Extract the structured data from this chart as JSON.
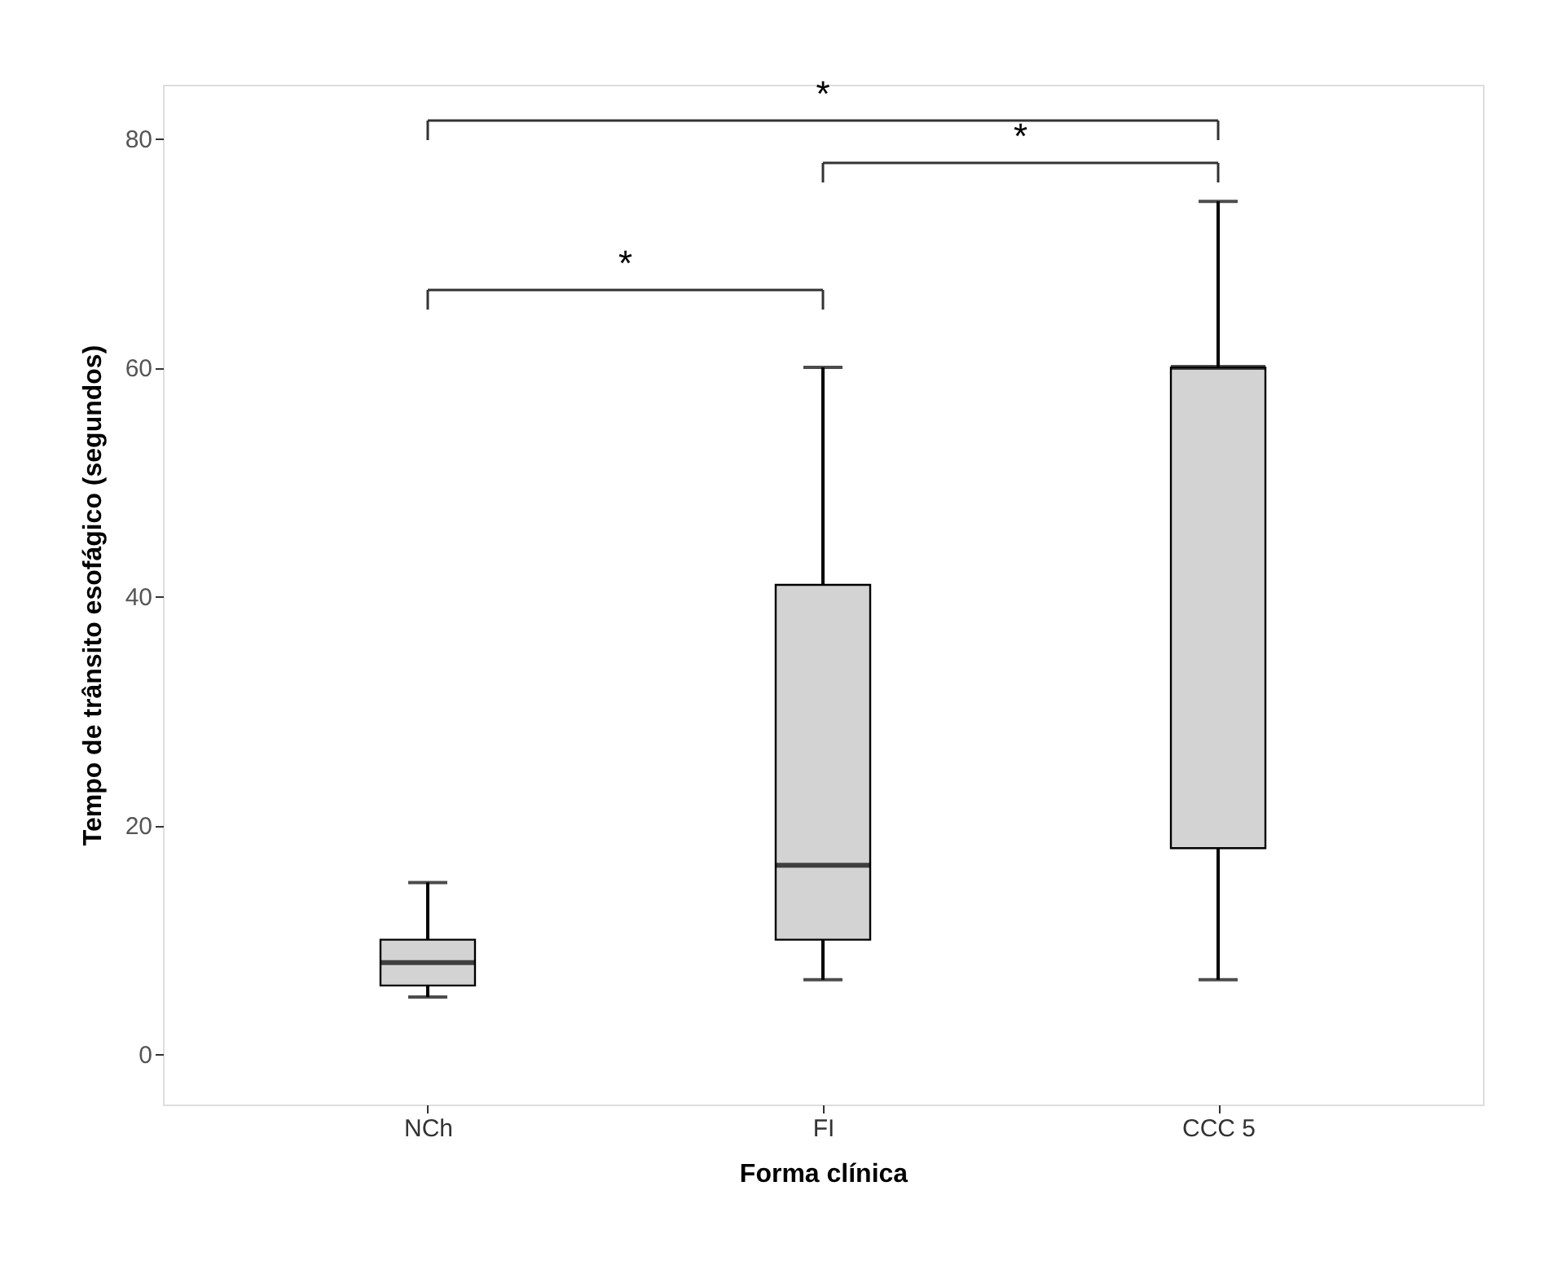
{
  "chart_data": {
    "type": "box",
    "categories": [
      "NCh",
      "FI",
      "CCC 5"
    ],
    "boxes": [
      {
        "low": 5,
        "q1": 6,
        "median": 8,
        "q3": 10,
        "high": 15
      },
      {
        "low": 6.5,
        "q1": 10,
        "median": 16.5,
        "q3": 41,
        "high": 60
      },
      {
        "low": 6.5,
        "q1": 18,
        "median": 60,
        "q3": 60,
        "high": 74.5
      }
    ],
    "color": "#d3d3d3",
    "xlabel": "Forma clínica",
    "ylabel": "Tempo de trânsito esofágico (segundos)",
    "ylim": [
      -4.4,
      84.7
    ],
    "yticks": [
      0,
      20,
      40,
      60,
      80
    ],
    "grid": false,
    "annotations": [
      "*",
      "*",
      "*"
    ]
  }
}
